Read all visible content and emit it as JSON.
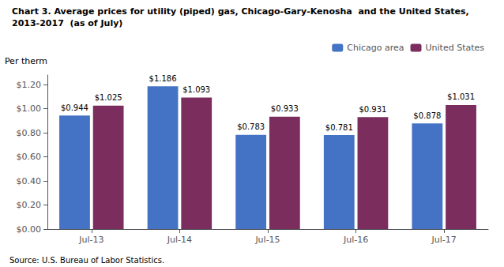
{
  "chart_data": {
    "type": "bar",
    "title": "Chart 3. Average prices for utility (piped) gas, Chicago-Gary-Kenosha  and the United States,",
    "subtitle": "2013-2017  (as of July)",
    "ylabel": "Per therm",
    "annotations": [
      "Source: U.S. Bureau of Labor Statistics."
    ],
    "categories": [
      "Jul-13",
      "Jul-14",
      "Jul-15",
      "Jul-16",
      "Jul-17"
    ],
    "series": [
      {
        "name": "Chicago area",
        "color": "#4472C4",
        "values": [
          0.944,
          1.186,
          0.783,
          0.781,
          0.878
        ],
        "value_labels": [
          "$0.944",
          "$1.186",
          "$0.783",
          "$0.781",
          "$0.878"
        ]
      },
      {
        "name": "United States",
        "color": "#7B2D5E",
        "values": [
          1.025,
          1.093,
          0.933,
          0.931,
          1.031
        ],
        "value_labels": [
          "$1.025",
          "$1.093",
          "$0.933",
          "$0.931",
          "$1.031"
        ]
      }
    ],
    "ylim": [
      0,
      1.28
    ],
    "yticks": [
      {
        "value": 0.0,
        "label": "$0.00"
      },
      {
        "value": 0.2,
        "label": "$0.20"
      },
      {
        "value": 0.4,
        "label": "$0.40"
      },
      {
        "value": 0.6,
        "label": "$0.60"
      },
      {
        "value": 0.8,
        "label": "$0.80"
      },
      {
        "value": 1.0,
        "label": "$1.00"
      },
      {
        "value": 1.2,
        "label": "$1.20"
      }
    ],
    "data_labels": true,
    "grid": false,
    "legend": "upper right"
  }
}
